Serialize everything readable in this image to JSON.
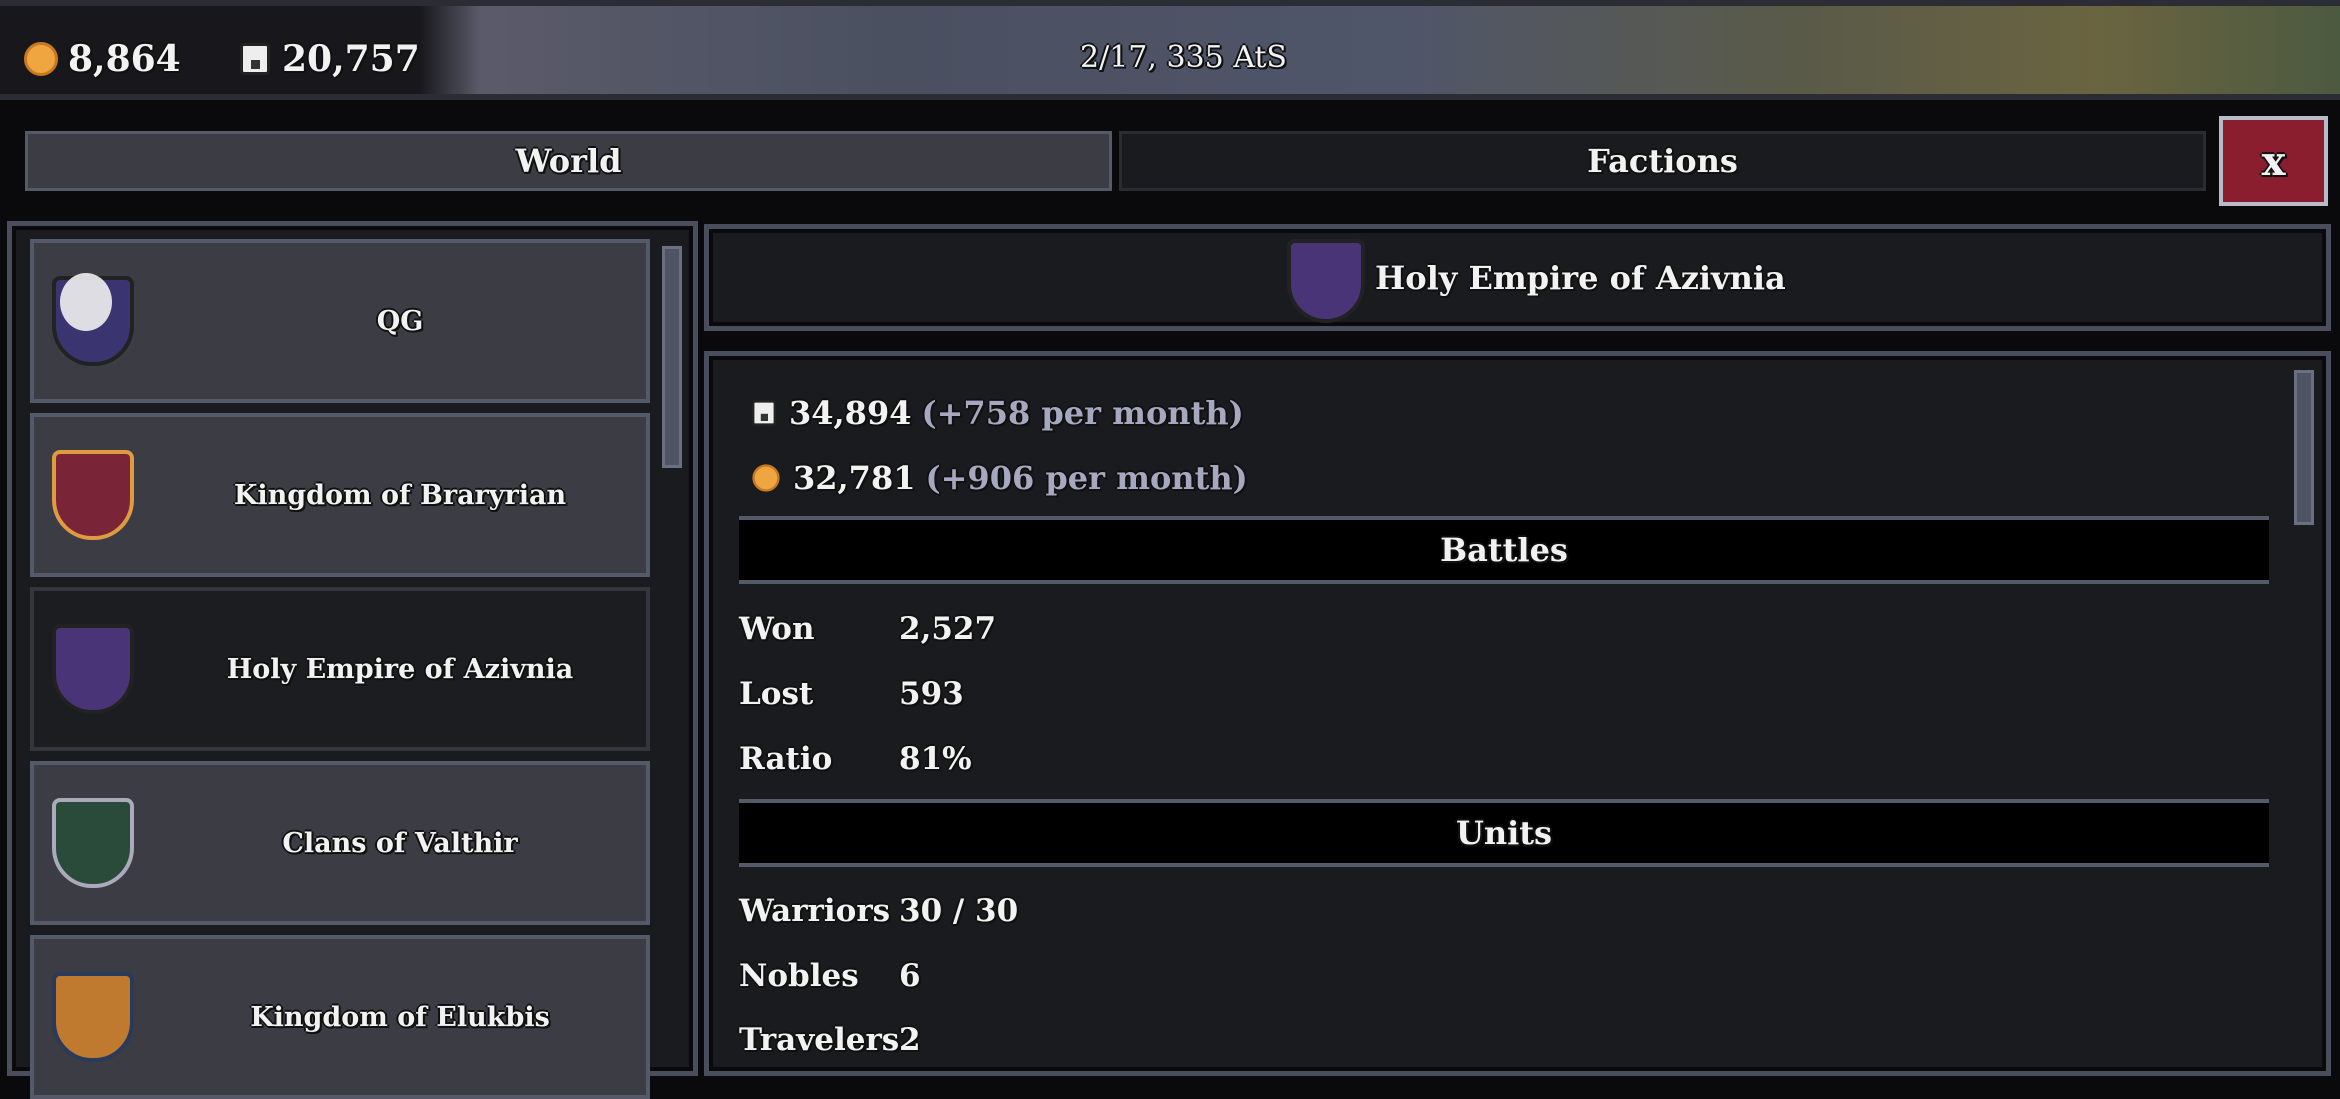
{
  "topbar": {
    "gold": "8,864",
    "manpower": "20,757",
    "date": "2/17, 335 AtS"
  },
  "tabs": {
    "world": "World",
    "factions": "Factions",
    "close": "x"
  },
  "factions": [
    {
      "name": "QG",
      "color": "#3a3470"
    },
    {
      "name": "Kingdom of Braryrian",
      "color": "#7a2438"
    },
    {
      "name": "Holy Empire of Azivnia",
      "color": "#4a3478"
    },
    {
      "name": "Clans of Valthir",
      "color": "#2a4a3a"
    },
    {
      "name": "Kingdom of Elukbis",
      "color": "#c07a30"
    }
  ],
  "detail": {
    "title": "Holy Empire of Azivnia",
    "manpower": "34,894",
    "manpower_rate": "(+758 per month)",
    "gold": "32,781",
    "gold_rate": "(+906 per month)",
    "battles_header": "Battles",
    "battles": [
      {
        "label": "Won",
        "value": "2,527"
      },
      {
        "label": "Lost",
        "value": "593"
      },
      {
        "label": "Ratio",
        "value": "81%"
      }
    ],
    "units_header": "Units",
    "units": [
      {
        "label": "Warriors",
        "value": "30 / 30"
      },
      {
        "label": "Nobles",
        "value": "6"
      },
      {
        "label": "Travelers",
        "value": "2"
      }
    ]
  }
}
